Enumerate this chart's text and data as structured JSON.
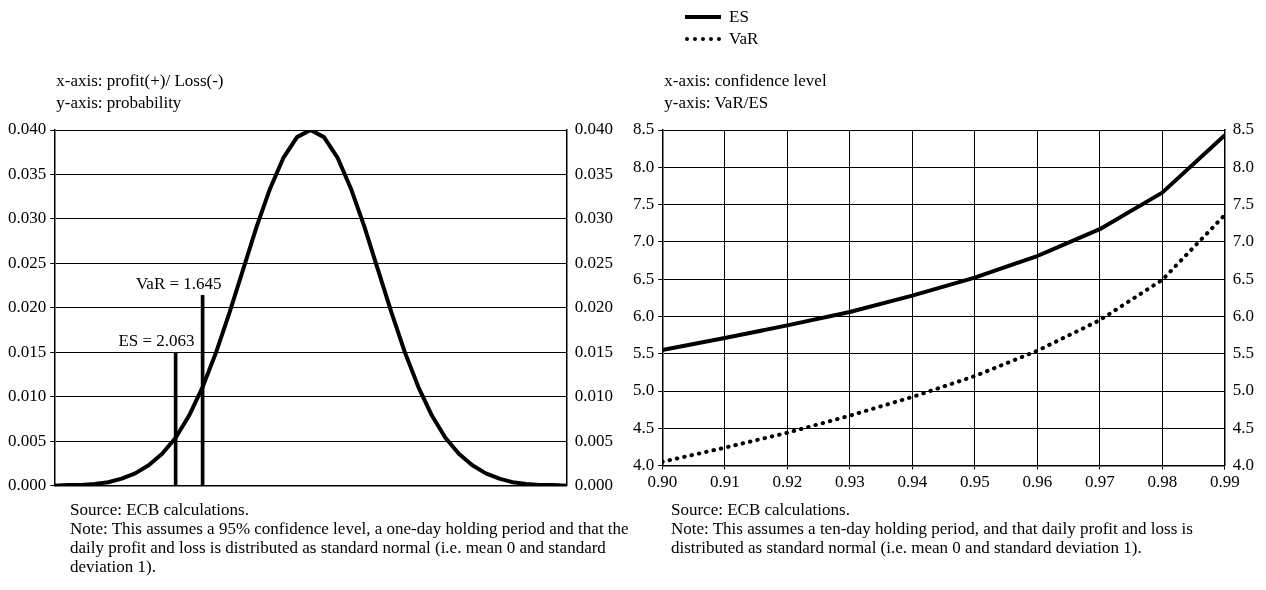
{
  "chart_data": [
    {
      "type": "line",
      "xlabel": "x-axis: profit(+)/ Loss(-)",
      "ylabel": "y-axis: probability",
      "categories": [
        null,
        null,
        null,
        null,
        null,
        null,
        null,
        null,
        null,
        null,
        null,
        null,
        null,
        null,
        null,
        null,
        null,
        null,
        null,
        null,
        null,
        null,
        null,
        null,
        null,
        null,
        null,
        null,
        null,
        null,
        null,
        null,
        null,
        null,
        null,
        null,
        null,
        null,
        null
      ],
      "ylim": [
        0,
        0.04
      ],
      "yticks": [
        {
          "value": 0,
          "label": "0.000"
        },
        {
          "value": 0.005,
          "label": "0.005"
        },
        {
          "value": 0.01,
          "label": "0.010"
        },
        {
          "value": 0.015,
          "label": "0.015"
        },
        {
          "value": 0.02,
          "label": "0.020"
        },
        {
          "value": 0.025,
          "label": "0.025"
        },
        {
          "value": 0.03,
          "label": "0.030"
        },
        {
          "value": 0.035,
          "label": "0.035"
        },
        {
          "value": 0.04,
          "label": "0.040"
        }
      ],
      "y2lim": [
        0,
        0.04
      ],
      "y2ticks": [
        {
          "value": 0,
          "label": "0.000"
        },
        {
          "value": 0.005,
          "label": "0.005"
        },
        {
          "value": 0.01,
          "label": "0.010"
        },
        {
          "value": 0.015,
          "label": "0.015"
        },
        {
          "value": 0.02,
          "label": "0.020"
        },
        {
          "value": 0.025,
          "label": "0.025"
        },
        {
          "value": 0.03,
          "label": "0.030"
        },
        {
          "value": 0.035,
          "label": "0.035"
        },
        {
          "value": 0.04,
          "label": "0.040"
        }
      ],
      "tick_labels": "y",
      "grid": "y",
      "legend": false,
      "marker": "none",
      "series": [
        {
          "color": "#000000",
          "values": [
            0,
            0.0001,
            0.0001,
            0.0002,
            0.0004,
            0.0008,
            0.0014,
            0.0023,
            0.0036,
            0.0054,
            0.0079,
            0.0111,
            0.015,
            0.0195,
            0.0243,
            0.0291,
            0.0334,
            0.0369,
            0.0392,
            0.04,
            0.0392,
            0.0369,
            0.0334,
            0.0291,
            0.0243,
            0.0195,
            0.015,
            0.0111,
            0.0079,
            0.0054,
            0.0036,
            0.0023,
            0.0014,
            0.0008,
            0.0004,
            0.0002,
            0.0001,
            0.0001,
            0
          ]
        },
        {
          "type": "bar",
          "name": "ES = 2.063",
          "color": "#000000",
          "values": [
            null,
            null,
            null,
            null,
            null,
            null,
            null,
            null,
            null,
            0.015,
            null,
            null,
            null,
            null,
            null,
            null,
            null,
            null,
            null,
            null,
            null,
            null,
            null,
            null,
            null,
            null,
            null,
            null,
            null,
            null,
            null,
            null,
            null,
            null,
            null,
            null,
            null,
            null,
            null
          ]
        },
        {
          "type": "bar",
          "name": "VaR = 1.645",
          "color": "#000000",
          "values": [
            null,
            null,
            null,
            null,
            null,
            null,
            null,
            null,
            null,
            null,
            null,
            0.0214,
            null,
            null,
            null,
            null,
            null,
            null,
            null,
            null,
            null,
            null,
            null,
            null,
            null,
            null,
            null,
            null,
            null,
            null,
            null,
            null,
            null,
            null,
            null,
            null,
            null,
            null,
            null
          ]
        }
      ],
      "annotations": [
        "Source: ECB calculations.",
        "Note: This assumes a 95% confidence level, a one-day holding period and that the daily profit and loss is distributed as standard normal (i.e. mean 0 and standard deviation 1)."
      ]
    },
    {
      "type": "line",
      "xlabel": "x-axis: confidence level",
      "ylabel": "y-axis: VaR/ES",
      "x": [
        0.9,
        0.91,
        0.92,
        0.93,
        0.94,
        0.95,
        0.96,
        0.97,
        0.98,
        0.99
      ],
      "xlim": [
        0.9,
        0.99
      ],
      "xticks": [
        {
          "value": 0.9,
          "label": "0.90"
        },
        {
          "value": 0.91,
          "label": "0.91"
        },
        {
          "value": 0.92,
          "label": "0.92"
        },
        {
          "value": 0.93,
          "label": "0.93"
        },
        {
          "value": 0.94,
          "label": "0.94"
        },
        {
          "value": 0.95,
          "label": "0.95"
        },
        {
          "value": 0.96,
          "label": "0.96"
        },
        {
          "value": 0.97,
          "label": "0.97"
        },
        {
          "value": 0.98,
          "label": "0.98"
        },
        {
          "value": 0.99,
          "label": "0.99"
        }
      ],
      "ylim": [
        4,
        8.5
      ],
      "yticks": [
        {
          "value": 4,
          "label": "4.0"
        },
        {
          "value": 4.5,
          "label": "4.5"
        },
        {
          "value": 5,
          "label": "5.0"
        },
        {
          "value": 5.5,
          "label": "5.5"
        },
        {
          "value": 6,
          "label": "6.0"
        },
        {
          "value": 6.5,
          "label": "6.5"
        },
        {
          "value": 7,
          "label": "7.0"
        },
        {
          "value": 7.5,
          "label": "7.5"
        },
        {
          "value": 8,
          "label": "8.0"
        },
        {
          "value": 8.5,
          "label": "8.5"
        }
      ],
      "y2lim": [
        4,
        8.5
      ],
      "y2ticks": [
        {
          "value": 4,
          "label": "4.0"
        },
        {
          "value": 4.5,
          "label": "4.5"
        },
        {
          "value": 5,
          "label": "5.0"
        },
        {
          "value": 5.5,
          "label": "5.5"
        },
        {
          "value": 6,
          "label": "6.0"
        },
        {
          "value": 6.5,
          "label": "6.5"
        },
        {
          "value": 7,
          "label": "7.0"
        },
        {
          "value": 7.5,
          "label": "7.5"
        },
        {
          "value": 8,
          "label": "8.0"
        },
        {
          "value": 8.5,
          "label": "8.5"
        }
      ],
      "grid": true,
      "legend": "top left",
      "marker": "none",
      "series": [
        {
          "name": "ES",
          "color": "#000000",
          "line_style": "solid",
          "values": [
            5.55,
            5.71,
            5.88,
            6.06,
            6.28,
            6.52,
            6.81,
            7.17,
            7.66,
            8.43
          ]
        },
        {
          "name": "VaR",
          "color": "#000000",
          "line_style": "dotted",
          "values": [
            4.05,
            4.24,
            4.44,
            4.67,
            4.92,
            5.2,
            5.54,
            5.95,
            6.49,
            7.36
          ]
        }
      ],
      "annotations": [
        "Source: ECB calculations.",
        "Note: This assumes a ten-day holding period, and that daily profit and loss is distributed as standard normal (i.e. mean 0 and standard deviation 1)."
      ]
    }
  ]
}
